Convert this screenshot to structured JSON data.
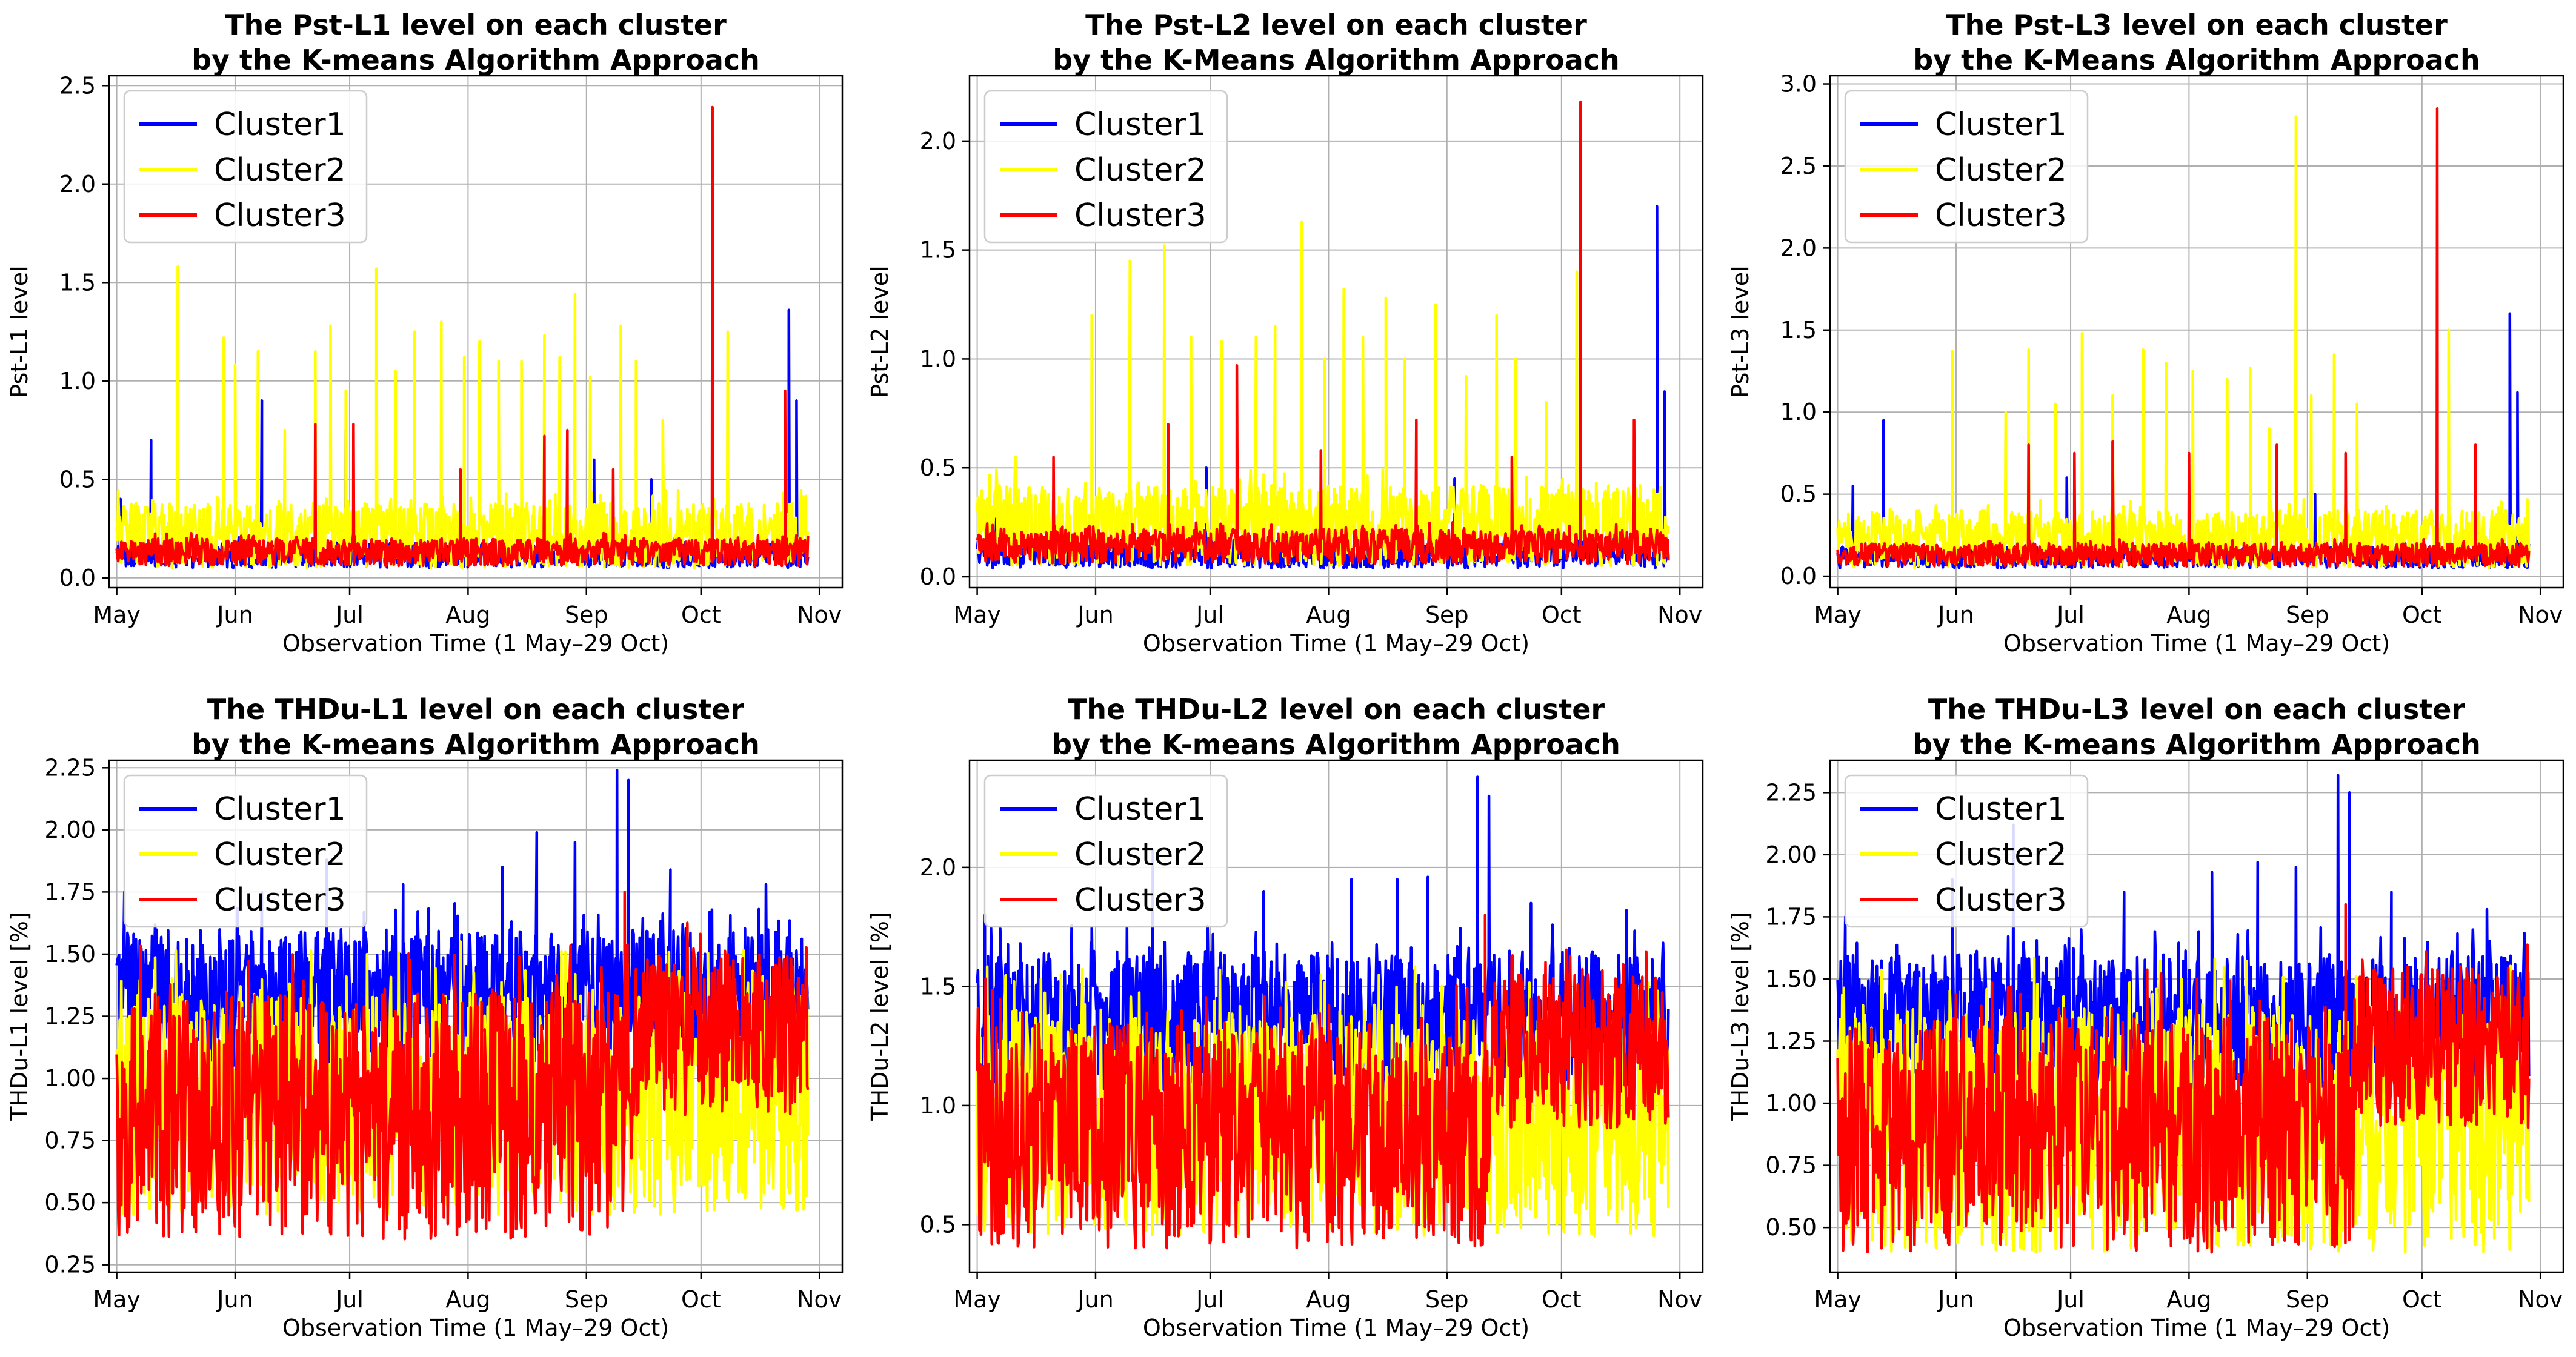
{
  "figure": {
    "x_label": "Observation Time (1 May–29 Oct)"
  },
  "chart_data": [
    {
      "type": "line",
      "title_lines": [
        "The Pst-L1 level on each cluster",
        "by the K-means Algorithm Approach"
      ],
      "xlabel": "Observation Time (1 May–29 Oct)",
      "ylabel": "Pst-L1 level",
      "x_ticks": [
        "May",
        "Jun",
        "Jul",
        "Aug",
        "Sep",
        "Oct",
        "Nov"
      ],
      "x_range_days": [
        -2,
        190
      ],
      "ylim": [
        -0.05,
        2.55
      ],
      "y_ticks": [
        "0.0",
        "0.5",
        "1.0",
        "1.5",
        "2.0",
        "2.5"
      ],
      "y_tick_values": [
        0.0,
        0.5,
        1.0,
        1.5,
        2.0,
        2.5
      ],
      "grid": true,
      "legend": {
        "position": "top-left",
        "entries": [
          "Cluster1",
          "Cluster2",
          "Cluster3"
        ]
      },
      "series": [
        {
          "name": "Cluster1",
          "color": "#0000ff",
          "base": [
            0.05,
            0.18
          ],
          "spikes": [
            [
              1,
              0.4
            ],
            [
              9,
              0.7
            ],
            [
              38,
              0.9
            ],
            [
              60,
              0.75
            ],
            [
              125,
              0.6
            ],
            [
              140,
              0.5
            ],
            [
              176,
              1.36
            ],
            [
              178,
              0.9
            ]
          ]
        },
        {
          "name": "Cluster2",
          "color": "#ffff00",
          "base": [
            0.05,
            0.38
          ],
          "spikes": [
            [
              16,
              1.58
            ],
            [
              28,
              1.22
            ],
            [
              31,
              1.08
            ],
            [
              37,
              1.15
            ],
            [
              44,
              0.75
            ],
            [
              52,
              1.15
            ],
            [
              56,
              1.28
            ],
            [
              60,
              0.95
            ],
            [
              68,
              1.57
            ],
            [
              73,
              1.05
            ],
            [
              78,
              1.25
            ],
            [
              85,
              1.3
            ],
            [
              91,
              1.12
            ],
            [
              95,
              1.2
            ],
            [
              100,
              1.1
            ],
            [
              106,
              1.1
            ],
            [
              112,
              1.23
            ],
            [
              116,
              1.12
            ],
            [
              120,
              1.44
            ],
            [
              124,
              1.02
            ],
            [
              132,
              1.28
            ],
            [
              136,
              1.1
            ],
            [
              143,
              0.8
            ],
            [
              160,
              1.25
            ]
          ]
        },
        {
          "name": "Cluster3",
          "color": "#ff0000",
          "base": [
            0.06,
            0.2
          ],
          "spikes": [
            [
              52,
              0.78
            ],
            [
              62,
              0.78
            ],
            [
              90,
              0.55
            ],
            [
              112,
              0.72
            ],
            [
              118,
              0.75
            ],
            [
              130,
              0.55
            ],
            [
              156,
              2.39
            ],
            [
              175,
              0.95
            ]
          ]
        }
      ]
    },
    {
      "type": "line",
      "title_lines": [
        "The Pst-L2 level on each cluster",
        "by the K-Means Algorithm Approach"
      ],
      "xlabel": "Observation Time (1 May–29 Oct)",
      "ylabel": "Pst-L2 level",
      "x_ticks": [
        "May",
        "Jun",
        "Jul",
        "Aug",
        "Sep",
        "Oct",
        "Nov"
      ],
      "x_range_days": [
        -2,
        190
      ],
      "ylim": [
        -0.05,
        2.3
      ],
      "y_ticks": [
        "0.0",
        "0.5",
        "1.0",
        "1.5",
        "2.0"
      ],
      "y_tick_values": [
        0.0,
        0.5,
        1.0,
        1.5,
        2.0
      ],
      "grid": true,
      "legend": {
        "position": "top-left",
        "entries": [
          "Cluster1",
          "Cluster2",
          "Cluster3"
        ]
      },
      "series": [
        {
          "name": "Cluster1",
          "color": "#0000ff",
          "base": [
            0.04,
            0.17
          ],
          "spikes": [
            [
              5,
              0.35
            ],
            [
              60,
              0.5
            ],
            [
              125,
              0.45
            ],
            [
              178,
              1.7
            ],
            [
              180,
              0.85
            ]
          ]
        },
        {
          "name": "Cluster2",
          "color": "#ffff00",
          "base": [
            0.05,
            0.42
          ],
          "spikes": [
            [
              10,
              0.55
            ],
            [
              30,
              1.2
            ],
            [
              40,
              1.45
            ],
            [
              49,
              1.52
            ],
            [
              56,
              1.1
            ],
            [
              64,
              1.08
            ],
            [
              73,
              1.1
            ],
            [
              78,
              1.15
            ],
            [
              85,
              1.63
            ],
            [
              91,
              1.0
            ],
            [
              96,
              1.32
            ],
            [
              101,
              1.1
            ],
            [
              107,
              1.28
            ],
            [
              112,
              1.0
            ],
            [
              120,
              1.25
            ],
            [
              128,
              0.92
            ],
            [
              136,
              1.2
            ],
            [
              141,
              1.0
            ],
            [
              149,
              0.8
            ],
            [
              157,
              1.4
            ]
          ]
        },
        {
          "name": "Cluster3",
          "color": "#ff0000",
          "base": [
            0.06,
            0.22
          ],
          "spikes": [
            [
              20,
              0.55
            ],
            [
              50,
              0.7
            ],
            [
              68,
              0.97
            ],
            [
              90,
              0.58
            ],
            [
              115,
              0.72
            ],
            [
              140,
              0.55
            ],
            [
              158,
              2.18
            ],
            [
              172,
              0.72
            ]
          ]
        }
      ]
    },
    {
      "type": "line",
      "title_lines": [
        "The Pst-L3 level on each cluster",
        "by the K-Means Algorithm Approach"
      ],
      "xlabel": "Observation Time (1 May–29 Oct)",
      "ylabel": "Pst-L3 level",
      "x_ticks": [
        "May",
        "Jun",
        "Jul",
        "Aug",
        "Sep",
        "Oct",
        "Nov"
      ],
      "x_range_days": [
        -2,
        190
      ],
      "ylim": [
        -0.07,
        3.05
      ],
      "y_ticks": [
        "0.0",
        "0.5",
        "1.0",
        "1.5",
        "2.0",
        "2.5",
        "3.0"
      ],
      "y_tick_values": [
        0.0,
        0.5,
        1.0,
        1.5,
        2.0,
        2.5,
        3.0
      ],
      "grid": true,
      "legend": {
        "position": "top-left",
        "entries": [
          "Cluster1",
          "Cluster2",
          "Cluster3"
        ]
      },
      "series": [
        {
          "name": "Cluster1",
          "color": "#0000ff",
          "base": [
            0.05,
            0.18
          ],
          "spikes": [
            [
              4,
              0.55
            ],
            [
              12,
              0.95
            ],
            [
              60,
              0.6
            ],
            [
              125,
              0.5
            ],
            [
              176,
              1.6
            ],
            [
              178,
              1.12
            ]
          ]
        },
        {
          "name": "Cluster2",
          "color": "#ffff00",
          "base": [
            0.05,
            0.4
          ],
          "spikes": [
            [
              30,
              1.37
            ],
            [
              44,
              1.0
            ],
            [
              50,
              1.38
            ],
            [
              57,
              1.05
            ],
            [
              64,
              1.48
            ],
            [
              72,
              1.1
            ],
            [
              80,
              1.38
            ],
            [
              86,
              1.3
            ],
            [
              93,
              1.25
            ],
            [
              102,
              1.2
            ],
            [
              108,
              1.27
            ],
            [
              113,
              0.9
            ],
            [
              120,
              2.8
            ],
            [
              124,
              1.1
            ],
            [
              130,
              1.35
            ],
            [
              136,
              1.05
            ],
            [
              160,
              1.5
            ]
          ]
        },
        {
          "name": "Cluster3",
          "color": "#ff0000",
          "base": [
            0.06,
            0.2
          ],
          "spikes": [
            [
              50,
              0.8
            ],
            [
              62,
              0.75
            ],
            [
              72,
              0.82
            ],
            [
              92,
              0.75
            ],
            [
              115,
              0.8
            ],
            [
              133,
              0.75
            ],
            [
              157,
              2.85
            ],
            [
              167,
              0.8
            ]
          ]
        }
      ]
    },
    {
      "type": "line",
      "title_lines": [
        "The THDu-L1 level on each cluster",
        "by the K-means Algorithm Approach"
      ],
      "xlabel": "Observation Time (1 May–29 Oct)",
      "ylabel": "THDu-L1 level [%]",
      "x_ticks": [
        "May",
        "Jun",
        "Jul",
        "Aug",
        "Sep",
        "Oct",
        "Nov"
      ],
      "x_range_days": [
        -2,
        190
      ],
      "ylim": [
        0.22,
        2.28
      ],
      "y_ticks": [
        "0.25",
        "0.50",
        "0.75",
        "1.00",
        "1.25",
        "1.50",
        "1.75",
        "2.00",
        "2.25"
      ],
      "y_tick_values": [
        0.25,
        0.5,
        0.75,
        1.0,
        1.25,
        1.5,
        1.75,
        2.0,
        2.25
      ],
      "grid": true,
      "legend": {
        "position": "top-left",
        "entries": [
          "Cluster1",
          "Cluster2",
          "Cluster3"
        ]
      },
      "series": [
        {
          "name": "Cluster1",
          "color": "#0000ff",
          "base": [
            1.05,
            1.6
          ],
          "spikes": [
            [
              2,
              1.75
            ],
            [
              38,
              1.75
            ],
            [
              55,
              1.88
            ],
            [
              75,
              1.78
            ],
            [
              101,
              1.85
            ],
            [
              110,
              1.99
            ],
            [
              120,
              1.95
            ],
            [
              131,
              2.24
            ],
            [
              134,
              2.2
            ],
            [
              145,
              1.84
            ],
            [
              170,
              1.78
            ]
          ]
        },
        {
          "name": "Cluster2",
          "color": "#ffff00",
          "base": [
            0.45,
            1.35
          ],
          "spikes": [
            [
              90,
              1.55
            ]
          ]
        },
        {
          "name": "Cluster3",
          "color": "#ff0000",
          "base": [
            0.35,
            1.35
          ],
          "spikes": [
            [
              133,
              1.75
            ],
            [
              160,
              1.5
            ]
          ],
          "shift_day": 135,
          "shift_base": [
            0.85,
            1.5
          ]
        }
      ]
    },
    {
      "type": "line",
      "title_lines": [
        "The THDu-L2 level on each cluster",
        "by the K-means Algorithm Approach"
      ],
      "xlabel": "Observation Time (1 May–29 Oct)",
      "ylabel": "THDu-L2 level [%]",
      "x_ticks": [
        "May",
        "Jun",
        "Jul",
        "Aug",
        "Sep",
        "Oct",
        "Nov"
      ],
      "x_range_days": [
        -2,
        190
      ],
      "ylim": [
        0.3,
        2.45
      ],
      "y_ticks": [
        "0.5",
        "1.0",
        "1.5",
        "2.0"
      ],
      "y_tick_values": [
        0.5,
        1.0,
        1.5,
        2.0
      ],
      "grid": true,
      "legend": {
        "position": "top-left",
        "entries": [
          "Cluster1",
          "Cluster2",
          "Cluster3"
        ]
      },
      "series": [
        {
          "name": "Cluster1",
          "color": "#0000ff",
          "base": [
            1.05,
            1.65
          ],
          "spikes": [
            [
              2,
              1.8
            ],
            [
              30,
              1.75
            ],
            [
              46,
              2.07
            ],
            [
              75,
              1.9
            ],
            [
              98,
              1.95
            ],
            [
              110,
              1.95
            ],
            [
              118,
              1.96
            ],
            [
              131,
              2.38
            ],
            [
              134,
              2.3
            ],
            [
              145,
              1.85
            ],
            [
              170,
              1.82
            ]
          ]
        },
        {
          "name": "Cluster2",
          "color": "#ffff00",
          "base": [
            0.45,
            1.4
          ],
          "spikes": [
            [
              90,
              1.55
            ]
          ]
        },
        {
          "name": "Cluster3",
          "color": "#ff0000",
          "base": [
            0.4,
            1.35
          ],
          "spikes": [
            [
              133,
              1.8
            ],
            [
              160,
              1.55
            ]
          ],
          "shift_day": 135,
          "shift_base": [
            0.9,
            1.55
          ]
        }
      ]
    },
    {
      "type": "line",
      "title_lines": [
        "The THDu-L3 level on each cluster",
        "by the K-means Algorithm Approach"
      ],
      "xlabel": "Observation Time (1 May–29 Oct)",
      "ylabel": "THDu-L3 level [%]",
      "x_ticks": [
        "May",
        "Jun",
        "Jul",
        "Aug",
        "Sep",
        "Oct",
        "Nov"
      ],
      "x_range_days": [
        -2,
        190
      ],
      "ylim": [
        0.32,
        2.38
      ],
      "y_ticks": [
        "0.50",
        "0.75",
        "1.00",
        "1.25",
        "1.50",
        "1.75",
        "2.00",
        "2.25"
      ],
      "y_tick_values": [
        0.5,
        0.75,
        1.0,
        1.25,
        1.5,
        1.75,
        2.0,
        2.25
      ],
      "grid": true,
      "legend": {
        "position": "top-left",
        "entries": [
          "Cluster1",
          "Cluster2",
          "Cluster3"
        ]
      },
      "series": [
        {
          "name": "Cluster1",
          "color": "#0000ff",
          "base": [
            1.05,
            1.6
          ],
          "spikes": [
            [
              2,
              1.75
            ],
            [
              30,
              1.9
            ],
            [
              46,
              2.12
            ],
            [
              75,
              1.85
            ],
            [
              98,
              1.93
            ],
            [
              110,
              1.97
            ],
            [
              120,
              1.95
            ],
            [
              131,
              2.32
            ],
            [
              134,
              2.25
            ],
            [
              145,
              1.85
            ],
            [
              170,
              1.78
            ]
          ]
        },
        {
          "name": "Cluster2",
          "color": "#ffff00",
          "base": [
            0.4,
            1.4
          ],
          "spikes": [
            [
              90,
              1.5
            ]
          ]
        },
        {
          "name": "Cluster3",
          "color": "#ff0000",
          "base": [
            0.4,
            1.35
          ],
          "spikes": [
            [
              133,
              1.8
            ],
            [
              160,
              1.5
            ]
          ],
          "shift_day": 135,
          "shift_base": [
            0.9,
            1.55
          ]
        }
      ]
    }
  ]
}
